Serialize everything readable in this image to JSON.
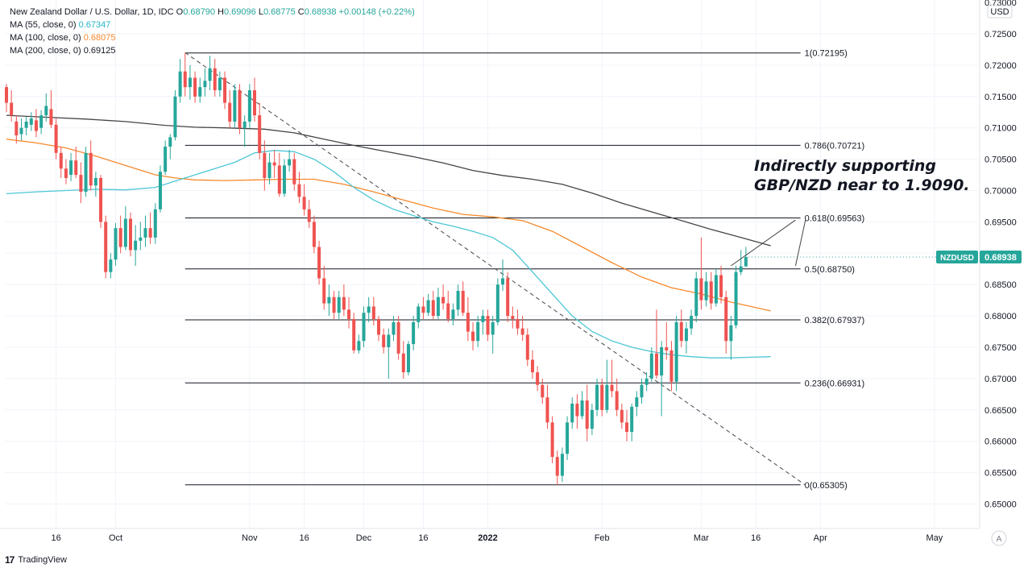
{
  "legend": {
    "title": "New Zealand Dollar / U.S. Dollar, 1D, IDC",
    "ohlc": [
      {
        "key": "O",
        "value": "0.68790"
      },
      {
        "key": "H",
        "value": "0.69096"
      },
      {
        "key": "L",
        "value": "0.68775"
      },
      {
        "key": "C",
        "value": "0.68938"
      }
    ],
    "change": "+0.00148 (+0.22%)",
    "ma": [
      {
        "label": "MA (55, close, 0)",
        "value": "0.67347",
        "color": "#26b5c7"
      },
      {
        "label": "MA (100, close, 0)",
        "value": "0.68075",
        "color": "#f7892d"
      },
      {
        "label": "MA (200, close, 0)",
        "value": "0.69125",
        "color": "#131722"
      }
    ]
  },
  "colors": {
    "up": "#26a69a",
    "down": "#ef5350",
    "ma55": "#4dc7d4",
    "ma100": "#f7892d",
    "ma200": "#454545",
    "price_label_bg": "#26a69a"
  },
  "price_label": {
    "symbol": "NZDUSD",
    "value": "0.68938"
  },
  "currency": "USD",
  "footer": "TradingView",
  "auto_button": "A",
  "chart_data": {
    "type": "candlestick",
    "title": "New Zealand Dollar / U.S. Dollar, 1D, IDC",
    "ylim": [
      0.6475,
      0.73
    ],
    "y_ticks": [
      "0.72500",
      "0.72000",
      "0.71500",
      "0.71000",
      "0.70500",
      "0.70000",
      "0.69500",
      "0.69000",
      "0.68500",
      "0.68000",
      "0.67500",
      "0.67000",
      "0.66500",
      "0.66000",
      "0.65500",
      "0.65000"
    ],
    "y_tick_top_partial": "0.73000",
    "x_ticks": [
      {
        "label": "16",
        "day": 10
      },
      {
        "label": "Oct",
        "day": 22
      },
      {
        "label": "Nov",
        "day": 49
      },
      {
        "label": "16",
        "day": 60
      },
      {
        "label": "Dec",
        "day": 72
      },
      {
        "label": "16",
        "day": 84
      },
      {
        "label": "2022",
        "day": 97
      },
      {
        "label": "Feb",
        "day": 120
      },
      {
        "label": "Mar",
        "day": 140
      },
      {
        "label": "16",
        "day": 151
      },
      {
        "label": "Apr",
        "day": 164
      },
      {
        "label": "May",
        "day": 187
      }
    ],
    "x_range_days": [
      0,
      200
    ],
    "fib_levels": [
      {
        "label": "1(0.72195)",
        "price": 0.72195
      },
      {
        "label": "0.786(0.70721)",
        "price": 0.70721
      },
      {
        "label": "0.618(0.69563)",
        "price": 0.69563
      },
      {
        "label": "0.5(0.68750)",
        "price": 0.6875
      },
      {
        "label": "0.382(0.67937)",
        "price": 0.67937
      },
      {
        "label": "0.236(0.66931)",
        "price": 0.66931
      },
      {
        "label": "0(0.65305)",
        "price": 0.65305
      }
    ],
    "fib_start_day": 36,
    "fib_end_day": 160,
    "trendline": {
      "start_day": 36,
      "start_price": 0.722,
      "end_day": 161,
      "end_price": 0.653
    },
    "annotation": {
      "lines": [
        "Indirectly supporting",
        "GBP/NZD near to 1.9090."
      ],
      "arrow_targets": [
        {
          "from_day": 159,
          "from_price": 0.6953,
          "to_day": 146,
          "to_price": 0.688
        },
        {
          "from_day": 161,
          "from_price": 0.6953,
          "to_day": 159,
          "to_price": 0.688
        }
      ]
    },
    "candles": [
      [
        0.7165,
        0.717,
        0.7125,
        0.714
      ],
      [
        0.714,
        0.716,
        0.711,
        0.712
      ],
      [
        0.711,
        0.712,
        0.7075,
        0.7088
      ],
      [
        0.709,
        0.7115,
        0.708,
        0.71
      ],
      [
        0.71,
        0.7118,
        0.7088,
        0.711
      ],
      [
        0.7105,
        0.7125,
        0.7095,
        0.7115
      ],
      [
        0.7112,
        0.713,
        0.7085,
        0.7095
      ],
      [
        0.71,
        0.7128,
        0.709,
        0.712
      ],
      [
        0.712,
        0.7155,
        0.711,
        0.7135
      ],
      [
        0.713,
        0.716,
        0.71,
        0.7105
      ],
      [
        0.7105,
        0.7115,
        0.705,
        0.706
      ],
      [
        0.706,
        0.707,
        0.702,
        0.7035
      ],
      [
        0.7035,
        0.705,
        0.701,
        0.702
      ],
      [
        0.7025,
        0.706,
        0.7015,
        0.7048
      ],
      [
        0.7048,
        0.707,
        0.702,
        0.7025
      ],
      [
        0.7025,
        0.7045,
        0.698,
        0.6998
      ],
      [
        0.6998,
        0.707,
        0.699,
        0.706
      ],
      [
        0.706,
        0.708,
        0.7,
        0.7008
      ],
      [
        0.7008,
        0.703,
        0.699,
        0.702
      ],
      [
        0.702,
        0.7025,
        0.694,
        0.695
      ],
      [
        0.695,
        0.696,
        0.686,
        0.687
      ],
      [
        0.687,
        0.69,
        0.686,
        0.689
      ],
      [
        0.689,
        0.6948,
        0.688,
        0.694
      ],
      [
        0.694,
        0.696,
        0.69,
        0.691
      ],
      [
        0.691,
        0.6975,
        0.6905,
        0.6955
      ],
      [
        0.6955,
        0.6965,
        0.6895,
        0.6905
      ],
      [
        0.6905,
        0.6945,
        0.688,
        0.692
      ],
      [
        0.692,
        0.695,
        0.6905,
        0.6925
      ],
      [
        0.6925,
        0.696,
        0.691,
        0.694
      ],
      [
        0.694,
        0.6965,
        0.6915,
        0.6925
      ],
      [
        0.6925,
        0.698,
        0.6915,
        0.697
      ],
      [
        0.697,
        0.704,
        0.6965,
        0.703
      ],
      [
        0.703,
        0.708,
        0.7025,
        0.707
      ],
      [
        0.707,
        0.709,
        0.705,
        0.7085
      ],
      [
        0.7085,
        0.716,
        0.708,
        0.715
      ],
      [
        0.715,
        0.721,
        0.714,
        0.719
      ],
      [
        0.719,
        0.722,
        0.715,
        0.7165
      ],
      [
        0.7165,
        0.72,
        0.7145,
        0.718
      ],
      [
        0.718,
        0.719,
        0.714,
        0.715
      ],
      [
        0.715,
        0.718,
        0.714,
        0.7165
      ],
      [
        0.7165,
        0.7195,
        0.715,
        0.7175
      ],
      [
        0.7175,
        0.7215,
        0.716,
        0.7195
      ],
      [
        0.7195,
        0.721,
        0.715,
        0.716
      ],
      [
        0.716,
        0.719,
        0.715,
        0.718
      ],
      [
        0.718,
        0.719,
        0.713,
        0.714
      ],
      [
        0.714,
        0.716,
        0.71,
        0.711
      ],
      [
        0.711,
        0.717,
        0.71,
        0.716
      ],
      [
        0.716,
        0.717,
        0.709,
        0.71
      ],
      [
        0.71,
        0.712,
        0.707,
        0.711
      ],
      [
        0.711,
        0.717,
        0.71,
        0.716
      ],
      [
        0.716,
        0.718,
        0.711,
        0.712
      ],
      [
        0.712,
        0.714,
        0.705,
        0.706
      ],
      [
        0.706,
        0.708,
        0.7,
        0.702
      ],
      [
        0.702,
        0.706,
        0.701,
        0.7045
      ],
      [
        0.7045,
        0.7065,
        0.702,
        0.704
      ],
      [
        0.704,
        0.706,
        0.699,
        0.6995
      ],
      [
        0.6995,
        0.705,
        0.699,
        0.704
      ],
      [
        0.704,
        0.7065,
        0.703,
        0.705
      ],
      [
        0.705,
        0.706,
        0.7,
        0.701
      ],
      [
        0.701,
        0.703,
        0.698,
        0.699
      ],
      [
        0.699,
        0.701,
        0.696,
        0.697
      ],
      [
        0.697,
        0.6985,
        0.694,
        0.695
      ],
      [
        0.695,
        0.696,
        0.69,
        0.691
      ],
      [
        0.691,
        0.692,
        0.685,
        0.686
      ],
      [
        0.686,
        0.688,
        0.681,
        0.682
      ],
      [
        0.682,
        0.685,
        0.68,
        0.683
      ],
      [
        0.683,
        0.684,
        0.6795,
        0.6805
      ],
      [
        0.6805,
        0.684,
        0.6795,
        0.683
      ],
      [
        0.683,
        0.685,
        0.68,
        0.681
      ],
      [
        0.681,
        0.683,
        0.678,
        0.6795
      ],
      [
        0.6795,
        0.6805,
        0.674,
        0.6745
      ],
      [
        0.6745,
        0.677,
        0.674,
        0.676
      ],
      [
        0.676,
        0.6815,
        0.675,
        0.6805
      ],
      [
        0.6805,
        0.683,
        0.679,
        0.6815
      ],
      [
        0.6815,
        0.683,
        0.6785,
        0.6795
      ],
      [
        0.6795,
        0.68,
        0.676,
        0.677
      ],
      [
        0.677,
        0.678,
        0.674,
        0.675
      ],
      [
        0.675,
        0.678,
        0.67,
        0.677
      ],
      [
        0.677,
        0.68,
        0.676,
        0.679
      ],
      [
        0.679,
        0.68,
        0.673,
        0.674
      ],
      [
        0.674,
        0.676,
        0.67,
        0.671
      ],
      [
        0.671,
        0.676,
        0.6705,
        0.6755
      ],
      [
        0.6755,
        0.68,
        0.6745,
        0.679
      ],
      [
        0.679,
        0.682,
        0.678,
        0.6815
      ],
      [
        0.6815,
        0.683,
        0.6795,
        0.6805
      ],
      [
        0.6805,
        0.6835,
        0.68,
        0.6825
      ],
      [
        0.6825,
        0.684,
        0.6795,
        0.68
      ],
      [
        0.68,
        0.6845,
        0.6795,
        0.683
      ],
      [
        0.683,
        0.685,
        0.681,
        0.682
      ],
      [
        0.682,
        0.684,
        0.679,
        0.6795
      ],
      [
        0.6795,
        0.682,
        0.6785,
        0.681
      ],
      [
        0.681,
        0.685,
        0.68,
        0.684
      ],
      [
        0.684,
        0.6855,
        0.68,
        0.6805
      ],
      [
        0.6805,
        0.683,
        0.676,
        0.6775
      ],
      [
        0.6775,
        0.679,
        0.6745,
        0.676
      ],
      [
        0.676,
        0.68,
        0.675,
        0.679
      ],
      [
        0.679,
        0.681,
        0.677,
        0.68
      ],
      [
        0.68,
        0.681,
        0.676,
        0.677
      ],
      [
        0.677,
        0.68,
        0.674,
        0.679
      ],
      [
        0.679,
        0.686,
        0.6785,
        0.685
      ],
      [
        0.685,
        0.689,
        0.684,
        0.686
      ],
      [
        0.686,
        0.687,
        0.679,
        0.68
      ],
      [
        0.68,
        0.6815,
        0.678,
        0.6795
      ],
      [
        0.6795,
        0.681,
        0.677,
        0.678
      ],
      [
        0.678,
        0.68,
        0.676,
        0.677
      ],
      [
        0.677,
        0.678,
        0.672,
        0.673
      ],
      [
        0.673,
        0.6745,
        0.67,
        0.671
      ],
      [
        0.671,
        0.672,
        0.668,
        0.669
      ],
      [
        0.669,
        0.67,
        0.666,
        0.667
      ],
      [
        0.667,
        0.669,
        0.662,
        0.663
      ],
      [
        0.663,
        0.664,
        0.6565,
        0.6575
      ],
      [
        0.6575,
        0.6585,
        0.653,
        0.6545
      ],
      [
        0.6545,
        0.659,
        0.6535,
        0.658
      ],
      [
        0.658,
        0.664,
        0.657,
        0.663
      ],
      [
        0.663,
        0.667,
        0.662,
        0.666
      ],
      [
        0.666,
        0.6675,
        0.662,
        0.664
      ],
      [
        0.664,
        0.668,
        0.6635,
        0.6665
      ],
      [
        0.6665,
        0.669,
        0.66,
        0.662
      ],
      [
        0.662,
        0.666,
        0.661,
        0.665
      ],
      [
        0.665,
        0.67,
        0.664,
        0.669
      ],
      [
        0.669,
        0.67,
        0.664,
        0.665
      ],
      [
        0.665,
        0.673,
        0.6645,
        0.669
      ],
      [
        0.669,
        0.673,
        0.667,
        0.668
      ],
      [
        0.668,
        0.67,
        0.664,
        0.665
      ],
      [
        0.665,
        0.666,
        0.662,
        0.663
      ],
      [
        0.663,
        0.665,
        0.66,
        0.6615
      ],
      [
        0.6615,
        0.666,
        0.66,
        0.6655
      ],
      [
        0.6655,
        0.668,
        0.664,
        0.667
      ],
      [
        0.667,
        0.67,
        0.666,
        0.669
      ],
      [
        0.669,
        0.671,
        0.668,
        0.67
      ],
      [
        0.67,
        0.675,
        0.6695,
        0.674
      ],
      [
        0.674,
        0.681,
        0.67,
        0.6705
      ],
      [
        0.6705,
        0.676,
        0.664,
        0.675
      ],
      [
        0.675,
        0.679,
        0.673,
        0.6745
      ],
      [
        0.6745,
        0.676,
        0.668,
        0.6695
      ],
      [
        0.6695,
        0.68,
        0.668,
        0.679
      ],
      [
        0.679,
        0.681,
        0.675,
        0.676
      ],
      [
        0.676,
        0.679,
        0.674,
        0.678
      ],
      [
        0.678,
        0.681,
        0.677,
        0.68
      ],
      [
        0.68,
        0.687,
        0.679,
        0.686
      ],
      [
        0.686,
        0.6925,
        0.681,
        0.6825
      ],
      [
        0.6825,
        0.687,
        0.6815,
        0.6855
      ],
      [
        0.6855,
        0.687,
        0.681,
        0.682
      ],
      [
        0.682,
        0.6875,
        0.6815,
        0.6865
      ],
      [
        0.6865,
        0.688,
        0.682,
        0.683
      ],
      [
        0.683,
        0.684,
        0.674,
        0.676
      ],
      [
        0.676,
        0.68,
        0.673,
        0.6785
      ],
      [
        0.6785,
        0.688,
        0.678,
        0.687
      ],
      [
        0.687,
        0.6905,
        0.6865,
        0.6879
      ],
      [
        0.6879,
        0.691,
        0.6878,
        0.6894
      ]
    ],
    "ma55": [
      [
        0,
        0.6995
      ],
      [
        6,
        0.6998
      ],
      [
        12,
        0.7
      ],
      [
        18,
        0.7002
      ],
      [
        24,
        0.7001
      ],
      [
        30,
        0.7005
      ],
      [
        34,
        0.7015
      ],
      [
        38,
        0.7025
      ],
      [
        42,
        0.7035
      ],
      [
        46,
        0.7045
      ],
      [
        50,
        0.706
      ],
      [
        54,
        0.7064
      ],
      [
        58,
        0.7062
      ],
      [
        62,
        0.705
      ],
      [
        66,
        0.703
      ],
      [
        70,
        0.7005
      ],
      [
        74,
        0.6985
      ],
      [
        78,
        0.697
      ],
      [
        82,
        0.696
      ],
      [
        86,
        0.695
      ],
      [
        90,
        0.6943
      ],
      [
        94,
        0.6935
      ],
      [
        98,
        0.6925
      ],
      [
        102,
        0.6905
      ],
      [
        106,
        0.687
      ],
      [
        110,
        0.6835
      ],
      [
        114,
        0.68
      ],
      [
        118,
        0.6775
      ],
      [
        122,
        0.676
      ],
      [
        126,
        0.675
      ],
      [
        130,
        0.6743
      ],
      [
        134,
        0.6738
      ],
      [
        138,
        0.6735
      ],
      [
        142,
        0.6733
      ],
      [
        146,
        0.6733
      ],
      [
        150,
        0.6734
      ],
      [
        154,
        0.6735
      ]
    ],
    "ma100": [
      [
        0,
        0.7082
      ],
      [
        6,
        0.7076
      ],
      [
        12,
        0.7068
      ],
      [
        18,
        0.7055
      ],
      [
        24,
        0.704
      ],
      [
        30,
        0.7025
      ],
      [
        34,
        0.702
      ],
      [
        38,
        0.7017
      ],
      [
        44,
        0.7016
      ],
      [
        50,
        0.7017
      ],
      [
        56,
        0.7018
      ],
      [
        62,
        0.7018
      ],
      [
        68,
        0.701
      ],
      [
        74,
        0.6998
      ],
      [
        80,
        0.6985
      ],
      [
        86,
        0.6972
      ],
      [
        92,
        0.6962
      ],
      [
        98,
        0.6958
      ],
      [
        104,
        0.6952
      ],
      [
        110,
        0.6935
      ],
      [
        116,
        0.691
      ],
      [
        122,
        0.6885
      ],
      [
        128,
        0.6862
      ],
      [
        134,
        0.6845
      ],
      [
        140,
        0.6835
      ],
      [
        146,
        0.6822
      ],
      [
        150,
        0.6815
      ],
      [
        154,
        0.6808
      ]
    ],
    "ma200": [
      [
        0,
        0.712
      ],
      [
        8,
        0.7117
      ],
      [
        16,
        0.7114
      ],
      [
        24,
        0.711
      ],
      [
        32,
        0.7104
      ],
      [
        38,
        0.7101
      ],
      [
        44,
        0.71
      ],
      [
        52,
        0.7098
      ],
      [
        58,
        0.7092
      ],
      [
        64,
        0.7082
      ],
      [
        70,
        0.7072
      ],
      [
        76,
        0.7063
      ],
      [
        82,
        0.7054
      ],
      [
        88,
        0.7044
      ],
      [
        94,
        0.7032
      ],
      [
        100,
        0.7024
      ],
      [
        106,
        0.7018
      ],
      [
        112,
        0.701
      ],
      [
        118,
        0.6996
      ],
      [
        124,
        0.698
      ],
      [
        130,
        0.6966
      ],
      [
        136,
        0.6952
      ],
      [
        142,
        0.6938
      ],
      [
        148,
        0.6925
      ],
      [
        154,
        0.6912
      ]
    ]
  }
}
